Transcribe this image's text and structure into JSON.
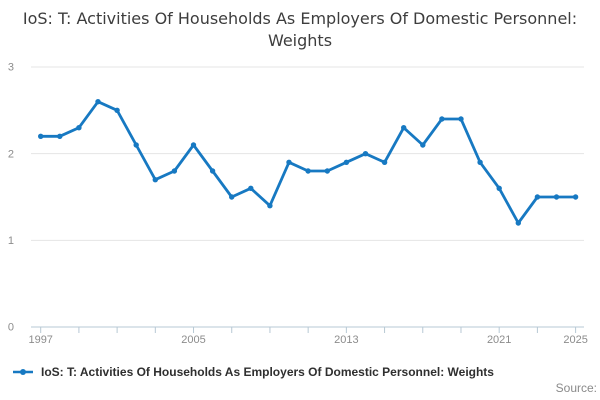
{
  "title": "IoS: T: Activities Of Households As Employers Of Domestic Personnel: Weights",
  "legend": {
    "label": "IoS: T: Activities Of Households As Employers Of Domestic Personnel: Weights"
  },
  "source_label": "Source:",
  "colors": {
    "line": "#1779c2",
    "marker": "#1779c2",
    "gridline": "#e5e5e5",
    "axis_line": "#b7c8d4",
    "axis_text": "#8c8c8c",
    "title_text": "#3d3d3d",
    "legend_text": "#2f2f2f",
    "source_text": "#8a8a8a",
    "background": "#ffffff"
  },
  "chart_data": {
    "type": "line",
    "title": "IoS: T: Activities Of Households As Employers Of Domestic Personnel: Weights",
    "x": [
      1997,
      1998,
      1999,
      2000,
      2001,
      2002,
      2003,
      2004,
      2005,
      2006,
      2007,
      2008,
      2009,
      2010,
      2011,
      2012,
      2013,
      2014,
      2015,
      2016,
      2017,
      2018,
      2019,
      2020,
      2021,
      2022,
      2023,
      2024,
      2025
    ],
    "series": [
      {
        "name": "IoS: T: Activities Of Households As Employers Of Domestic Personnel: Weights",
        "values": [
          2.2,
          2.2,
          2.3,
          2.6,
          2.5,
          2.1,
          1.7,
          1.8,
          2.1,
          1.8,
          1.5,
          1.6,
          1.4,
          1.9,
          1.8,
          1.8,
          1.9,
          2.0,
          1.9,
          2.3,
          2.1,
          2.4,
          2.4,
          1.9,
          1.6,
          1.2,
          1.5,
          1.5,
          1.5
        ]
      }
    ],
    "xlabel": "",
    "ylabel": "",
    "ylim": [
      0,
      3
    ],
    "yticks": [
      0,
      1,
      2,
      3
    ],
    "xtick_labels": [
      1997,
      2005,
      2013,
      2021,
      2025
    ],
    "xticks_all": [
      1997,
      1999,
      2001,
      2003,
      2005,
      2007,
      2009,
      2011,
      2013,
      2015,
      2017,
      2019,
      2021,
      2023,
      2025
    ],
    "grid": "horizontal",
    "legend_position": "bottom-left"
  }
}
